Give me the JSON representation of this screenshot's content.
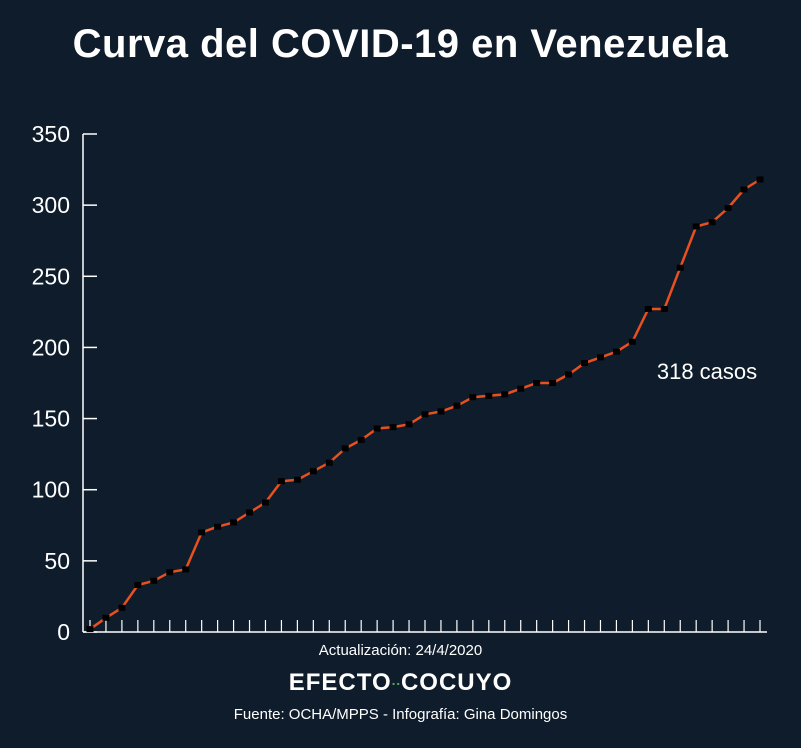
{
  "title": "Curva del COVID-19 en Venezuela",
  "chart_data": {
    "type": "line",
    "title": "Curva del COVID-19 en Venezuela",
    "xlabel": "",
    "ylabel": "",
    "ylim": [
      0,
      350
    ],
    "yticks": [
      0,
      50,
      100,
      150,
      200,
      250,
      300,
      350
    ],
    "grid": false,
    "series": [
      {
        "values": [
          2,
          10,
          17,
          33,
          36,
          42,
          44,
          70,
          74,
          77,
          84,
          91,
          106,
          107,
          113,
          119,
          129,
          135,
          143,
          144,
          146,
          153,
          155,
          159,
          165,
          166,
          167,
          171,
          175,
          175,
          181,
          189,
          193,
          197,
          204,
          227,
          227,
          256,
          285,
          288,
          298,
          311,
          318
        ]
      }
    ],
    "annotation": "318 casos",
    "line_color": "#e8501e",
    "marker_color": "#000000",
    "axis_color": "#ffffff"
  },
  "footer": {
    "update": "Actualización: 24/4/2020",
    "brand_left": "EFECTO",
    "brand_sep": "··",
    "brand_right": "COCUYO",
    "source": "Fuente: OCHA/MPPS - Infografía: Gina Domingos"
  }
}
